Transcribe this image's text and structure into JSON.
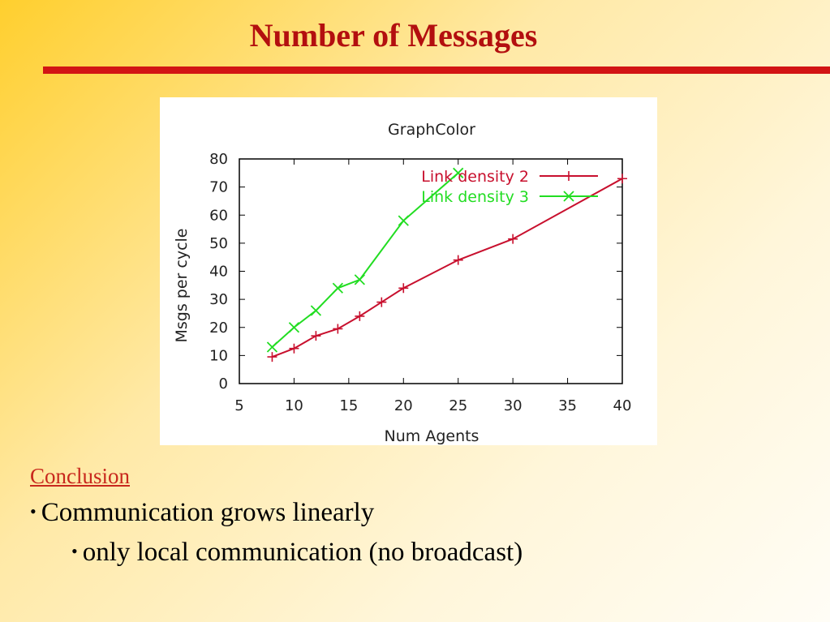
{
  "slide": {
    "title": "Number of Messages",
    "conclusion_label": "Conclusion",
    "bullet_1": "Communication grows linearly",
    "bullet_2": "only local communication (no broadcast)",
    "title_color": "#b30f0f",
    "rule_color": "#d21414"
  },
  "chart_data": {
    "type": "line",
    "title": "GraphColor",
    "xlabel": "Num Agents",
    "ylabel": "Msgs per cycle",
    "xlim": [
      5,
      40
    ],
    "ylim": [
      0,
      80
    ],
    "xticks": [
      5,
      10,
      15,
      20,
      25,
      30,
      35,
      40
    ],
    "yticks": [
      0,
      10,
      20,
      30,
      40,
      50,
      60,
      70,
      80
    ],
    "grid": false,
    "legend_position": "top-right",
    "series": [
      {
        "name": "Link density 2",
        "color": "#c8102e",
        "marker": "plus",
        "x": [
          8,
          10,
          12,
          14,
          16,
          18,
          20,
          25,
          30,
          40
        ],
        "y": [
          9.5,
          12.5,
          17,
          19.5,
          24,
          29,
          34,
          44,
          51.5,
          73
        ]
      },
      {
        "name": "Link density 3",
        "color": "#22dd22",
        "marker": "cross",
        "x": [
          8,
          10,
          12,
          14,
          16,
          20,
          25
        ],
        "y": [
          13,
          20,
          26,
          34,
          37,
          58,
          75
        ]
      }
    ]
  }
}
